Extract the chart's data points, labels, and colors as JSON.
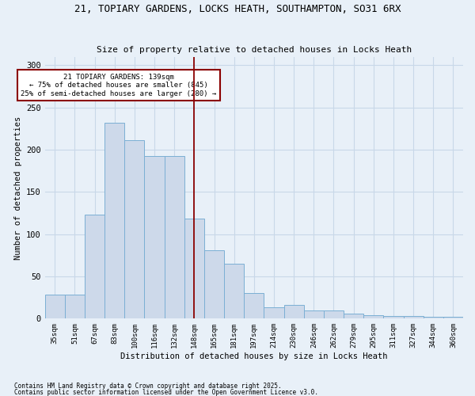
{
  "title_line1": "21, TOPIARY GARDENS, LOCKS HEATH, SOUTHAMPTON, SO31 6RX",
  "title_line2": "Size of property relative to detached houses in Locks Heath",
  "xlabel": "Distribution of detached houses by size in Locks Heath",
  "ylabel": "Number of detached properties",
  "bar_labels": [
    "35sqm",
    "51sqm",
    "67sqm",
    "83sqm",
    "100sqm",
    "116sqm",
    "132sqm",
    "148sqm",
    "165sqm",
    "181sqm",
    "197sqm",
    "214sqm",
    "230sqm",
    "246sqm",
    "262sqm",
    "279sqm",
    "295sqm",
    "311sqm",
    "327sqm",
    "344sqm",
    "360sqm"
  ],
  "bar_values": [
    28,
    28,
    123,
    232,
    211,
    192,
    192,
    118,
    81,
    65,
    30,
    13,
    16,
    10,
    10,
    6,
    4,
    3,
    3,
    2,
    2
  ],
  "bar_color": "#cdd9ea",
  "bar_edge_color": "#7bafd4",
  "bg_color": "#e8f0f8",
  "grid_color": "#c8d8e8",
  "vline_x": 7.0,
  "vline_color": "#8b0000",
  "annotation_text": "21 TOPIARY GARDENS: 139sqm\n← 75% of detached houses are smaller (845)\n25% of semi-detached houses are larger (280) →",
  "annotation_box_color": "#ffffff",
  "annotation_border_color": "#8b0000",
  "footer_line1": "Contains HM Land Registry data © Crown copyright and database right 2025.",
  "footer_line2": "Contains public sector information licensed under the Open Government Licence v3.0.",
  "ylim": [
    0,
    310
  ],
  "yticks": [
    0,
    50,
    100,
    150,
    200,
    250,
    300
  ]
}
